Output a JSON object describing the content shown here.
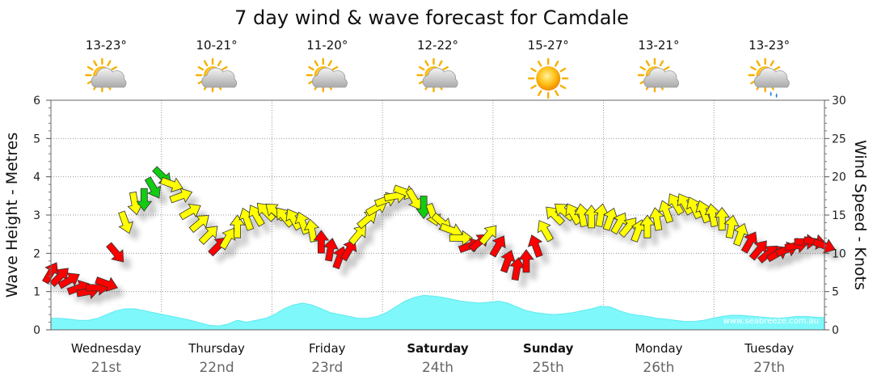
{
  "chart_data": {
    "type": "line",
    "title": "7 day wind & wave forecast for Camdale",
    "ylabel_left": "Wave Height - Metres",
    "ylabel_right": "Wind Speed - Knots",
    "ylim_left": [
      0,
      6
    ],
    "ylim_right": [
      0,
      30
    ],
    "yticks_left": [
      "0",
      "1",
      "2",
      "3",
      "4",
      "5",
      "6"
    ],
    "yticks_right": [
      "0",
      "5",
      "10",
      "15",
      "20",
      "25",
      "30"
    ],
    "watermark": "www.seabreeze.com.au",
    "days": [
      {
        "name": "Wednesday",
        "date": "21st",
        "temp": "13-23°",
        "weather": "partly-cloudy-icon",
        "bold": false
      },
      {
        "name": "Thursday",
        "date": "22nd",
        "temp": "10-21°",
        "weather": "partly-cloudy-icon",
        "bold": false
      },
      {
        "name": "Friday",
        "date": "23rd",
        "temp": "11-20°",
        "weather": "partly-cloudy-icon",
        "bold": false
      },
      {
        "name": "Saturday",
        "date": "24th",
        "temp": "12-22°",
        "weather": "partly-cloudy-icon",
        "bold": true
      },
      {
        "name": "Sunday",
        "date": "25th",
        "temp": "15-27°",
        "weather": "sunny-icon",
        "bold": true
      },
      {
        "name": "Monday",
        "date": "26th",
        "temp": "13-21°",
        "weather": "partly-cloudy-icon",
        "bold": false
      },
      {
        "name": "Tuesday",
        "date": "27th",
        "temp": "13-23°",
        "weather": "rain-shower-icon",
        "bold": false
      }
    ],
    "wave_height_m": [
      0.3,
      0.3,
      0.28,
      0.25,
      0.25,
      0.3,
      0.4,
      0.5,
      0.55,
      0.55,
      0.5,
      0.45,
      0.4,
      0.35,
      0.3,
      0.25,
      0.18,
      0.12,
      0.1,
      0.15,
      0.25,
      0.2,
      0.25,
      0.3,
      0.4,
      0.55,
      0.65,
      0.7,
      0.65,
      0.55,
      0.45,
      0.4,
      0.35,
      0.3,
      0.3,
      0.35,
      0.45,
      0.6,
      0.75,
      0.85,
      0.9,
      0.88,
      0.85,
      0.8,
      0.75,
      0.72,
      0.7,
      0.72,
      0.75,
      0.7,
      0.6,
      0.5,
      0.45,
      0.42,
      0.4,
      0.42,
      0.45,
      0.5,
      0.55,
      0.62,
      0.6,
      0.5,
      0.42,
      0.38,
      0.35,
      0.3,
      0.28,
      0.25,
      0.22,
      0.22,
      0.25,
      0.3,
      0.35,
      0.38,
      0.38,
      0.36,
      0.34,
      0.32,
      0.3,
      0.32,
      0.35,
      0.35,
      0.33,
      0.32
    ],
    "wind_knots": [
      7.5,
      7.0,
      6.5,
      5.5,
      5.0,
      5.5,
      6.0,
      10.0,
      14.0,
      16.5,
      17.0,
      18.5,
      20.0,
      19.0,
      17.5,
      15.5,
      14.0,
      12.5,
      11.0,
      12.0,
      13.5,
      14.5,
      15.0,
      15.5,
      15.5,
      14.8,
      14.5,
      14.0,
      13.0,
      11.5,
      10.5,
      9.5,
      10.5,
      12.5,
      14.5,
      16.0,
      17.0,
      17.5,
      18.0,
      17.0,
      16.0,
      15.0,
      14.0,
      13.0,
      12.0,
      11.0,
      11.5,
      12.5,
      11.0,
      9.0,
      8.0,
      9.0,
      11.0,
      13.0,
      15.0,
      15.5,
      15.2,
      15.0,
      14.8,
      15.0,
      14.5,
      14.0,
      13.5,
      13.0,
      13.5,
      14.5,
      15.5,
      16.5,
      16.5,
      16.0,
      15.5,
      15.0,
      14.5,
      13.5,
      12.5,
      11.5,
      10.5,
      10.0,
      10.0,
      10.5,
      11.0,
      11.5,
      11.5,
      11.0
    ],
    "wind_direction_deg": [
      120,
      135,
      150,
      160,
      170,
      180,
      200,
      230,
      250,
      260,
      270,
      240,
      225,
      200,
      160,
      150,
      140,
      135,
      135,
      120,
      90,
      70,
      60,
      45,
      40,
      50,
      60,
      70,
      80,
      90,
      100,
      110,
      120,
      130,
      140,
      150,
      160,
      170,
      200,
      240,
      270,
      250,
      220,
      200,
      180,
      160,
      140,
      130,
      120,
      110,
      100,
      90,
      70,
      60,
      45,
      40,
      60,
      80,
      90,
      100,
      110,
      120,
      130,
      110,
      90,
      80,
      70,
      60,
      60,
      65,
      70,
      80,
      90,
      100,
      110,
      120,
      130,
      140,
      150,
      160,
      170,
      180,
      190,
      200
    ],
    "wind_color_legend": {
      "light": "#11cc11",
      "moderate": "#ffff00",
      "strong": "#ff0000"
    }
  }
}
